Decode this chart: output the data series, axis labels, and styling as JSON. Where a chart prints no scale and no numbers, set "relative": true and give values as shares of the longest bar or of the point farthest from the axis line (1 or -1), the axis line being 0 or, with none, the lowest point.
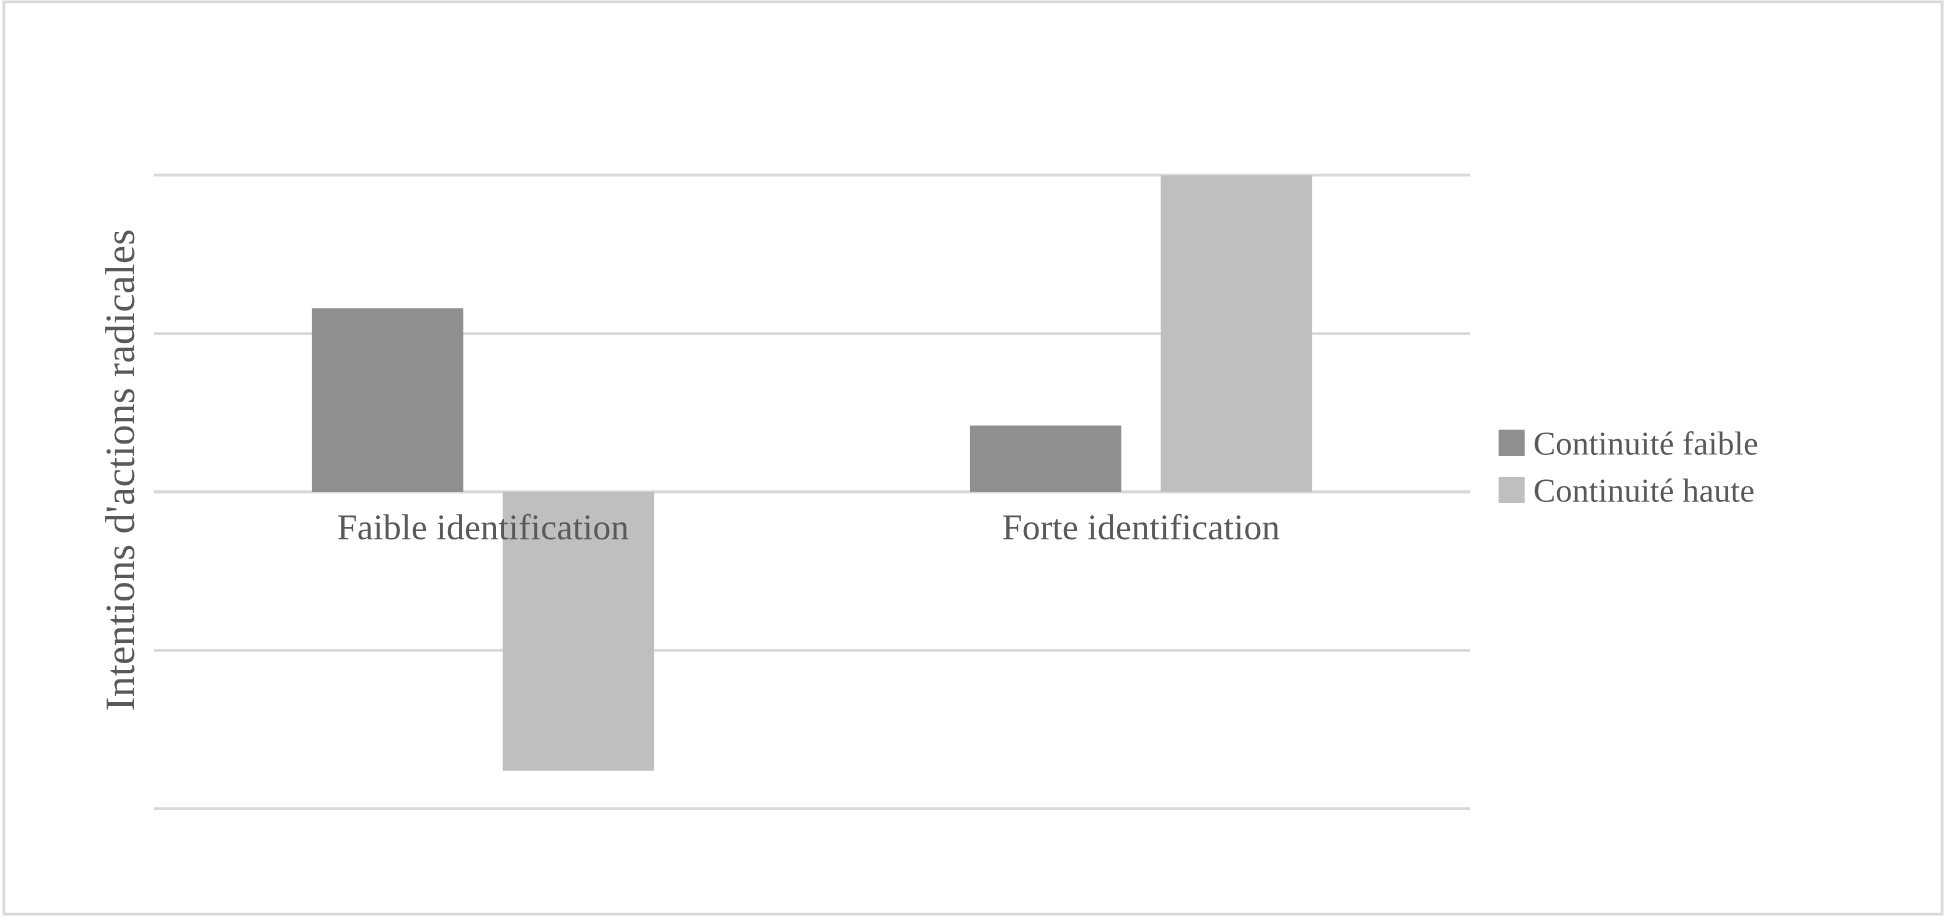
{
  "chart_data": {
    "type": "bar",
    "relative": true,
    "ylabel": "Intentions d'actions radicales",
    "categories": [
      "Faible identification",
      "Forte identification"
    ],
    "series": [
      {
        "name": "Continuité faible",
        "color": "#8f8f8f",
        "values": [
          0.58,
          0.21
        ]
      },
      {
        "name": "Continuité haute",
        "color": "#bfbfbf",
        "values": [
          -0.88,
          1
        ]
      }
    ],
    "grid": "y",
    "legend": "right"
  }
}
